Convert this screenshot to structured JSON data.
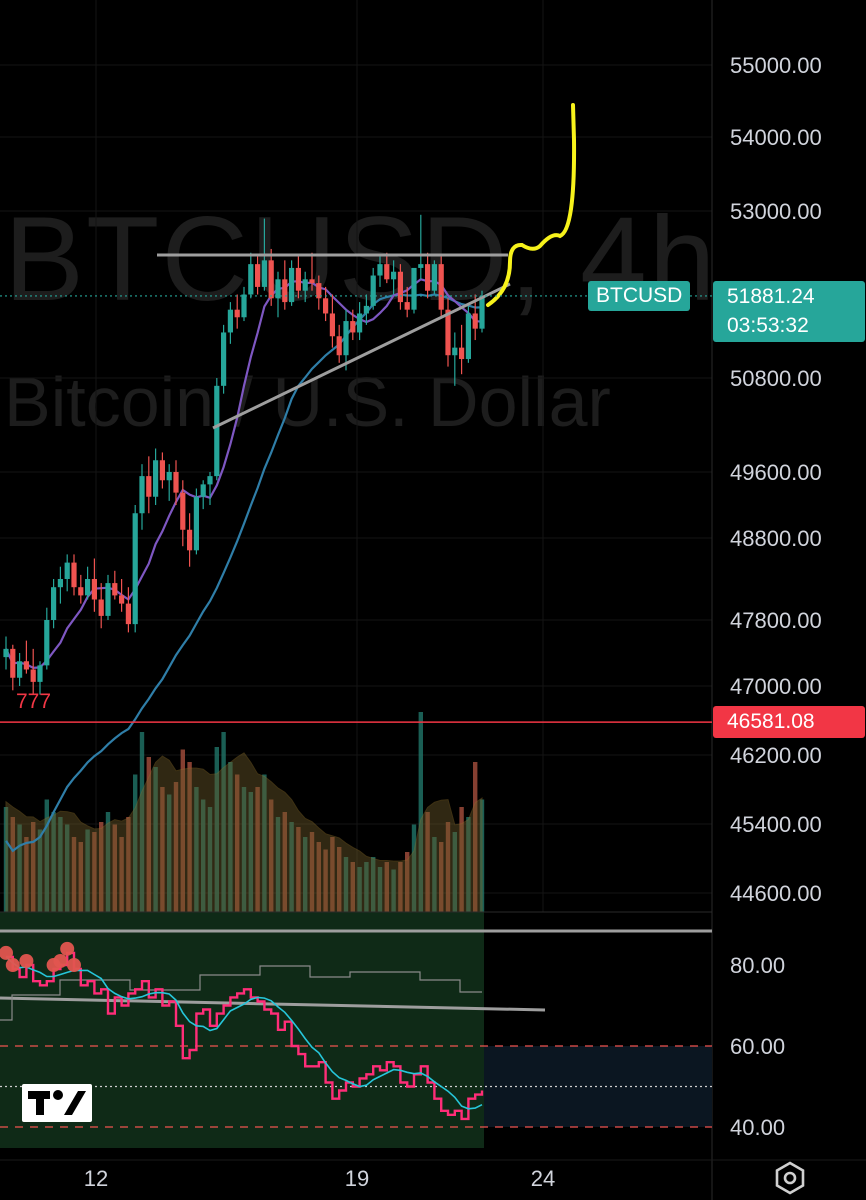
{
  "watermark": {
    "symbol_interval": "BTCUSD, 4h",
    "description": "Bitcoin / U.S. Dollar"
  },
  "symbol_badge": "BTCUSD",
  "last_price": "51881.24",
  "countdown": "03:53:32",
  "alert_level": {
    "label": "46581.08",
    "value": 46581.08,
    "note": "777"
  },
  "colors": {
    "up": "#26a69a",
    "down": "#ef5350",
    "alert": "#f23645",
    "ma_fast": "#7e57c2",
    "ma_slow": "#2f7ea8",
    "drawing": "#f7f21b",
    "trendline": "#9e9e9e",
    "rsi": "#ff2d78",
    "rsi_ma": "#26c6da"
  },
  "icons": [
    "tradingview-logo-icon",
    "settings-icon"
  ],
  "chart_data": {
    "type": "candlestick",
    "title": "BTCUSD, 4h",
    "price_axis": {
      "ticks": [
        "55000.00",
        "54000.00",
        "53000.00",
        "50800.00",
        "49600.00",
        "48800.00",
        "47800.00",
        "47000.00",
        "46200.00",
        "45400.00",
        "44600.00"
      ]
    },
    "time_axis": {
      "ticks": [
        "12",
        "19",
        "24"
      ]
    },
    "price_range": [
      44600,
      55400
    ],
    "candles": [
      [
        47350,
        47600,
        47200,
        47450
      ],
      [
        47450,
        47500,
        46950,
        47100
      ],
      [
        47100,
        47400,
        47000,
        47300
      ],
      [
        47300,
        47550,
        47150,
        47200
      ],
      [
        47200,
        47450,
        46900,
        47050
      ],
      [
        47050,
        47300,
        46900,
        47250
      ],
      [
        47250,
        47950,
        47200,
        47800
      ],
      [
        47800,
        48300,
        47700,
        48200
      ],
      [
        48200,
        48450,
        48000,
        48300
      ],
      [
        48300,
        48600,
        48150,
        48500
      ],
      [
        48500,
        48600,
        48100,
        48200
      ],
      [
        48200,
        48350,
        48000,
        48100
      ],
      [
        48100,
        48450,
        48050,
        48300
      ],
      [
        48300,
        48550,
        47900,
        48050
      ],
      [
        48050,
        48250,
        47700,
        47850
      ],
      [
        47850,
        48350,
        47800,
        48250
      ],
      [
        48250,
        48400,
        48050,
        48100
      ],
      [
        48100,
        48300,
        47900,
        48000
      ],
      [
        48000,
        48200,
        47650,
        47750
      ],
      [
        47750,
        49200,
        47650,
        49100
      ],
      [
        49100,
        49700,
        48900,
        49550
      ],
      [
        49550,
        49800,
        49100,
        49300
      ],
      [
        49300,
        49900,
        49200,
        49750
      ],
      [
        49750,
        49850,
        49400,
        49500
      ],
      [
        49500,
        49700,
        49250,
        49600
      ],
      [
        49600,
        49750,
        49200,
        49350
      ],
      [
        49350,
        49500,
        48700,
        48900
      ],
      [
        48900,
        49100,
        48450,
        48650
      ],
      [
        48650,
        49400,
        48600,
        49300
      ],
      [
        49300,
        49500,
        49150,
        49450
      ],
      [
        49450,
        49600,
        49200,
        49550
      ],
      [
        49550,
        50800,
        49500,
        50700
      ],
      [
        50700,
        51500,
        50600,
        51400
      ],
      [
        51400,
        51800,
        51250,
        51700
      ],
      [
        51700,
        51900,
        51450,
        51600
      ],
      [
        51600,
        52000,
        51550,
        51900
      ],
      [
        51900,
        52450,
        51850,
        52300
      ],
      [
        52300,
        52400,
        51900,
        52000
      ],
      [
        52000,
        52900,
        51950,
        52350
      ],
      [
        52350,
        52500,
        51750,
        51850
      ],
      [
        51850,
        52200,
        51600,
        52100
      ],
      [
        52100,
        52350,
        51700,
        51800
      ],
      [
        51800,
        52350,
        51750,
        52250
      ],
      [
        52250,
        52400,
        51850,
        51950
      ],
      [
        51950,
        52200,
        51800,
        52100
      ],
      [
        52100,
        52450,
        51950,
        52050
      ],
      [
        52050,
        52150,
        51700,
        51850
      ],
      [
        51850,
        52000,
        51550,
        51650
      ],
      [
        51650,
        51900,
        51200,
        51350
      ],
      [
        51350,
        51500,
        51000,
        51100
      ],
      [
        51100,
        51700,
        50900,
        51550
      ],
      [
        51550,
        51700,
        51300,
        51400
      ],
      [
        51400,
        51800,
        51300,
        51650
      ],
      [
        51650,
        51900,
        51500,
        51750
      ],
      [
        51750,
        52250,
        51700,
        52150
      ],
      [
        52150,
        52400,
        52000,
        52300
      ],
      [
        52300,
        52450,
        52050,
        52100
      ],
      [
        52100,
        52350,
        51900,
        52200
      ],
      [
        52200,
        52300,
        51700,
        51800
      ],
      [
        51800,
        52000,
        51600,
        51700
      ],
      [
        51700,
        52200,
        51650,
        52250
      ],
      [
        52250,
        52950,
        52100,
        52300
      ],
      [
        52300,
        52450,
        51850,
        51950
      ],
      [
        51950,
        52350,
        51900,
        52300
      ],
      [
        52300,
        52400,
        51600,
        51700
      ],
      [
        51700,
        51850,
        50950,
        51100
      ],
      [
        51100,
        51400,
        50700,
        51200
      ],
      [
        51200,
        51500,
        50850,
        51050
      ],
      [
        51050,
        51750,
        51000,
        51650
      ],
      [
        51650,
        51900,
        51300,
        51450
      ],
      [
        51450,
        51950,
        51400,
        51881.24
      ]
    ],
    "volume": [
      0.42,
      0.38,
      0.35,
      0.3,
      0.36,
      0.33,
      0.45,
      0.4,
      0.38,
      0.35,
      0.3,
      0.28,
      0.33,
      0.32,
      0.36,
      0.4,
      0.35,
      0.3,
      0.38,
      0.55,
      0.72,
      0.62,
      0.58,
      0.5,
      0.47,
      0.52,
      0.65,
      0.6,
      0.5,
      0.45,
      0.42,
      0.66,
      0.72,
      0.6,
      0.55,
      0.5,
      0.48,
      0.5,
      0.55,
      0.45,
      0.38,
      0.4,
      0.36,
      0.34,
      0.3,
      0.32,
      0.28,
      0.25,
      0.3,
      0.26,
      0.22,
      0.2,
      0.18,
      0.2,
      0.22,
      0.18,
      0.2,
      0.17,
      0.2,
      0.24,
      0.35,
      0.8,
      0.4,
      0.3,
      0.28,
      0.36,
      0.32,
      0.42,
      0.38,
      0.6,
      0.45
    ],
    "rsi": {
      "ticks": [
        "80.00",
        "60.00",
        "40.00"
      ],
      "range": [
        40,
        80
      ],
      "values": [
        82,
        79,
        77,
        80,
        76,
        75,
        76,
        79,
        80,
        83,
        79,
        75,
        76,
        73,
        74,
        68,
        72,
        70,
        73,
        74,
        76,
        72,
        74,
        70,
        71,
        65,
        57,
        59,
        68,
        69,
        65,
        68,
        70,
        72,
        73,
        74,
        72,
        71,
        69,
        68,
        64,
        66,
        60,
        58,
        55,
        55,
        56,
        51,
        47,
        49,
        51,
        50,
        52,
        53,
        55,
        54,
        56,
        55,
        51,
        50,
        53,
        55,
        51,
        47,
        44,
        43,
        44,
        42,
        47,
        48,
        49
      ]
    },
    "annotations": {
      "resistance_line_price": 52420,
      "support_trendline": "rising",
      "projection": "hand-drawn breakout arrow"
    }
  }
}
